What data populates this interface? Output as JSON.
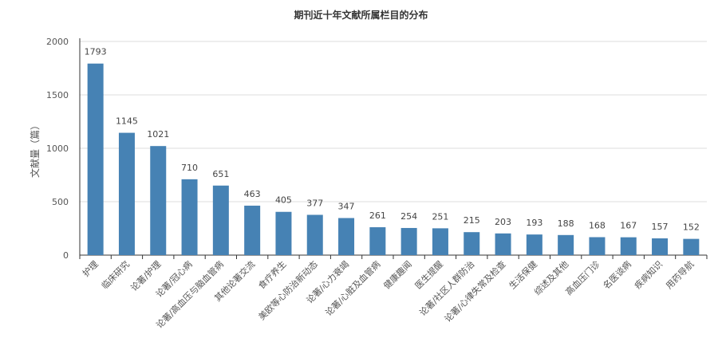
{
  "chart_data": {
    "type": "bar",
    "title": "期刊近十年文献所属栏目的分布",
    "xlabel": "",
    "ylabel": "文献量（篇）",
    "ylim": [
      0,
      2000
    ],
    "yticks": [
      0,
      500,
      1000,
      1500,
      2000
    ],
    "grid": true,
    "bar_color": "#4682b4",
    "categories": [
      "护理",
      "临床研究",
      "论著/护理",
      "论著/冠心病",
      "论著/高血压与脑血管病",
      "其他论著交流",
      "食疗养生",
      "美欧等心防治新动态",
      "论著/心力衰竭",
      "论著/心脏及血管病",
      "健康趣闻",
      "医生提醒",
      "论著/社区人群防治",
      "论著/心律失常及检查",
      "生活保健",
      "综述及其他",
      "高血压门诊",
      "名医谈病",
      "疾病知识",
      "用药导航"
    ],
    "values": [
      1793,
      1145,
      1021,
      710,
      651,
      463,
      405,
      377,
      347,
      261,
      254,
      251,
      215,
      203,
      193,
      188,
      168,
      167,
      157,
      152
    ]
  }
}
